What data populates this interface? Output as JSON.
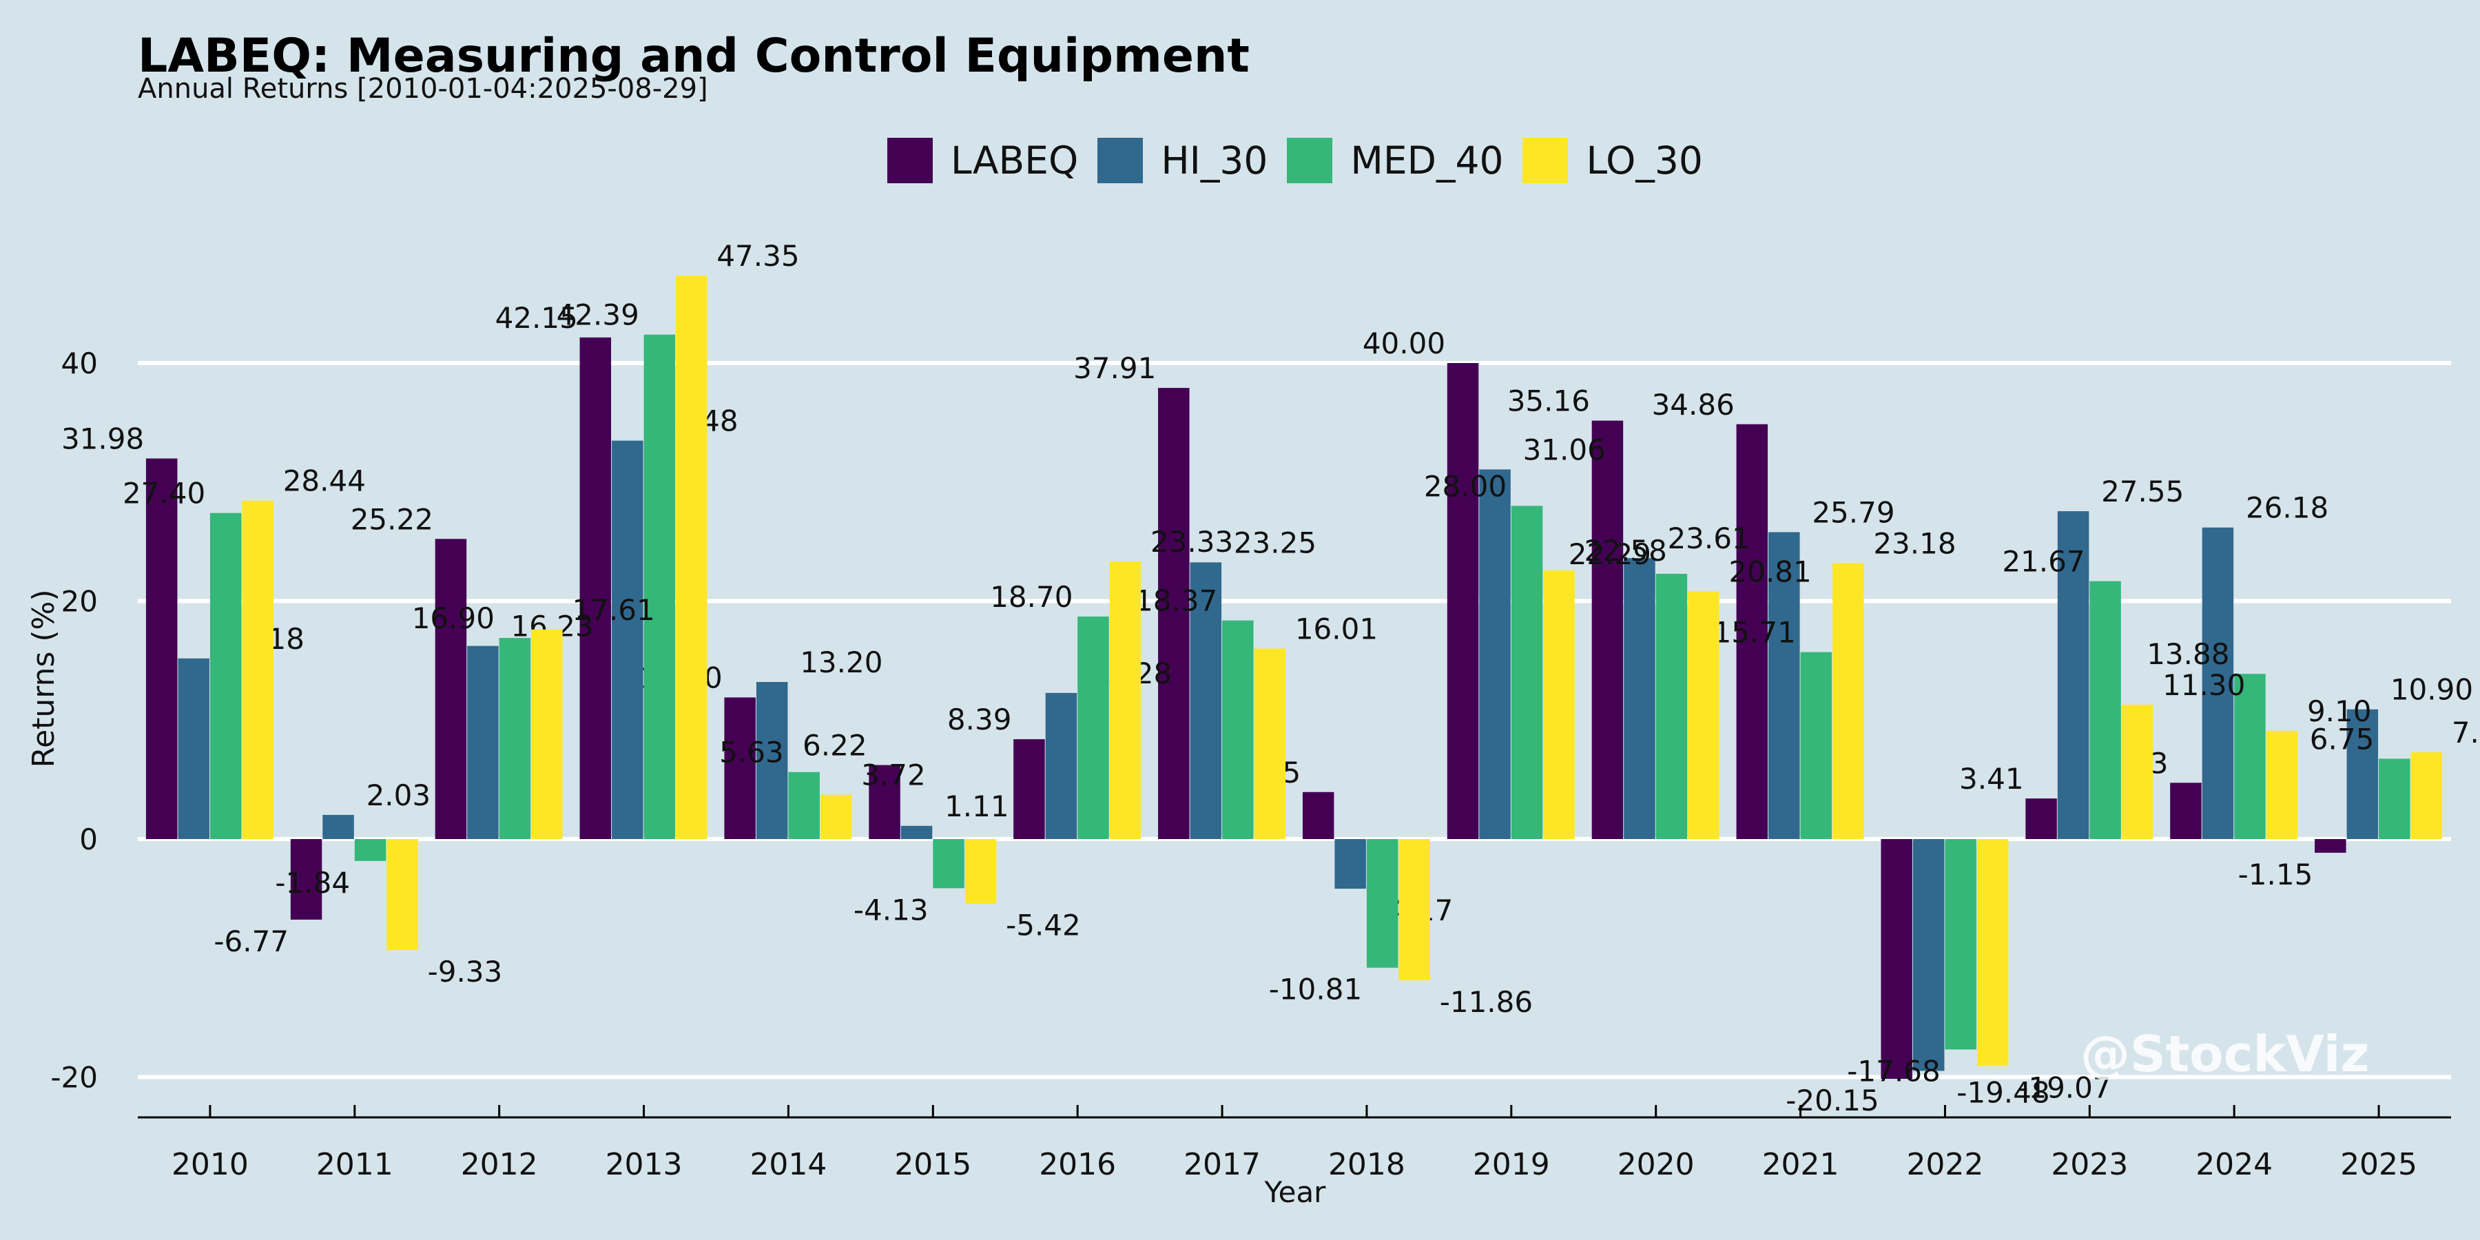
{
  "chart_data": {
    "type": "bar",
    "title": "LABEQ: Measuring and Control Equipment",
    "subtitle": "Annual Returns [2010-01-04:2025-08-29]",
    "xlabel": "Year",
    "ylabel": "Returns (%)",
    "ylim": [
      -22,
      55
    ],
    "yticks": [
      -20,
      0,
      20,
      40
    ],
    "grid": true,
    "legend_position": "top-center",
    "categories": [
      "2010",
      "2011",
      "2012",
      "2013",
      "2014",
      "2015",
      "2016",
      "2017",
      "2018",
      "2019",
      "2020",
      "2021",
      "2022",
      "2023",
      "2024",
      "2025"
    ],
    "series": [
      {
        "name": "LABEQ",
        "color": "#440154",
        "values": [
          31.98,
          -6.77,
          25.22,
          42.15,
          11.9,
          6.22,
          8.39,
          37.91,
          3.95,
          40.0,
          35.16,
          34.86,
          -20.15,
          3.41,
          4.73,
          -1.15
        ]
      },
      {
        "name": "HI_30",
        "color": "#31688e",
        "values": [
          15.18,
          2.03,
          16.23,
          33.48,
          13.2,
          1.11,
          12.28,
          23.25,
          -4.17,
          31.06,
          23.61,
          25.79,
          -19.48,
          27.55,
          26.18,
          10.9
        ]
      },
      {
        "name": "MED_40",
        "color": "#35b779",
        "values": [
          27.4,
          -1.84,
          16.9,
          42.39,
          5.63,
          -4.13,
          18.7,
          18.37,
          -10.81,
          28.0,
          22.29,
          15.71,
          -17.68,
          21.67,
          13.88,
          6.75
        ]
      },
      {
        "name": "LO_30",
        "color": "#fde725",
        "values": [
          28.44,
          -9.33,
          17.61,
          47.35,
          3.72,
          -5.42,
          23.33,
          16.01,
          -11.86,
          22.58,
          20.81,
          23.18,
          -19.07,
          11.3,
          9.1,
          7.29
        ]
      }
    ]
  },
  "watermark": "@StockViz"
}
